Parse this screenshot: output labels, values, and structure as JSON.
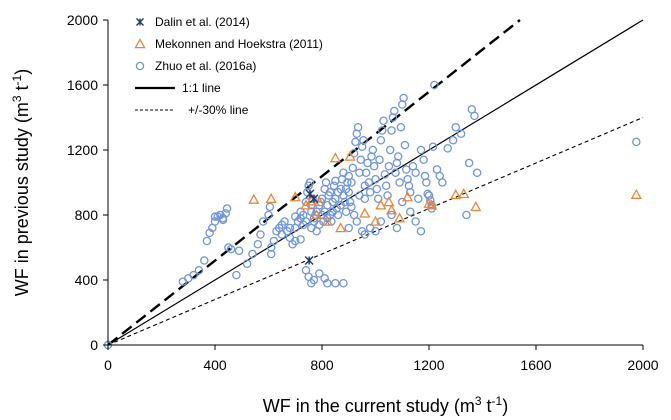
{
  "chart_data": {
    "type": "scatter",
    "xlabel_parts": [
      "WF in the current study (m",
      "3",
      " t",
      "-1",
      ")"
    ],
    "ylabel_parts": [
      "WF in previous study (m",
      "3",
      " t",
      "-1",
      ")"
    ],
    "xlim": [
      0,
      2000
    ],
    "ylim": [
      0,
      2000
    ],
    "x_ticks": [
      "0",
      "400",
      "800",
      "1200",
      "1600",
      "2000"
    ],
    "y_ticks": [
      "0",
      "400",
      "800",
      "1200",
      "1600",
      "2000"
    ],
    "grid": false,
    "legend_position": "top-left",
    "series": [
      {
        "name": "Dalin et al. (2014)",
        "marker": "asterisk",
        "color": "#1f3a6e",
        "points": [
          [
            752,
            520
          ],
          [
            755,
            930
          ],
          [
            770,
            900
          ]
        ]
      },
      {
        "name": "Mekonnen and Hoekstra (2011)",
        "marker": "triangle",
        "color": "#e8873a",
        "points": [
          [
            545,
            895
          ],
          [
            610,
            900
          ],
          [
            700,
            910
          ],
          [
            760,
            885
          ],
          [
            790,
            880
          ],
          [
            850,
            1150
          ],
          [
            905,
            1160
          ],
          [
            960,
            810
          ],
          [
            1020,
            860
          ],
          [
            1060,
            830
          ],
          [
            1050,
            880
          ],
          [
            1120,
            910
          ],
          [
            1200,
            870
          ],
          [
            1210,
            860
          ],
          [
            1300,
            925
          ],
          [
            1330,
            930
          ],
          [
            1375,
            850
          ],
          [
            1975,
            925
          ],
          [
            780,
            800
          ],
          [
            820,
            760
          ],
          [
            870,
            720
          ],
          [
            740,
            860
          ],
          [
            1000,
            760
          ],
          [
            1090,
            780
          ]
        ]
      },
      {
        "name": "Zhuo et al. (2016a)",
        "marker": "circle",
        "color": "#6f94d8",
        "points": [
          [
            0,
            0
          ],
          [
            280,
            390
          ],
          [
            300,
            410
          ],
          [
            320,
            430
          ],
          [
            340,
            460
          ],
          [
            360,
            520
          ],
          [
            370,
            640
          ],
          [
            380,
            690
          ],
          [
            390,
            720
          ],
          [
            400,
            760
          ],
          [
            410,
            790
          ],
          [
            420,
            800
          ],
          [
            430,
            780
          ],
          [
            440,
            810
          ],
          [
            445,
            840
          ],
          [
            450,
            600
          ],
          [
            460,
            590
          ],
          [
            480,
            430
          ],
          [
            490,
            580
          ],
          [
            520,
            500
          ],
          [
            540,
            560
          ],
          [
            560,
            620
          ],
          [
            570,
            680
          ],
          [
            580,
            760
          ],
          [
            600,
            800
          ],
          [
            605,
            850
          ],
          [
            610,
            560
          ],
          [
            620,
            640
          ],
          [
            630,
            700
          ],
          [
            640,
            720
          ],
          [
            650,
            740
          ],
          [
            660,
            760
          ],
          [
            670,
            700
          ],
          [
            680,
            660
          ],
          [
            690,
            620
          ],
          [
            700,
            640
          ],
          [
            700,
            720
          ],
          [
            710,
            760
          ],
          [
            720,
            780
          ],
          [
            720,
            820
          ],
          [
            730,
            800
          ],
          [
            730,
            740
          ],
          [
            740,
            760
          ],
          [
            740,
            880
          ],
          [
            745,
            940
          ],
          [
            750,
            980
          ],
          [
            755,
            1000
          ],
          [
            760,
            720
          ],
          [
            760,
            820
          ],
          [
            760,
            860
          ],
          [
            765,
            900
          ],
          [
            770,
            760
          ],
          [
            770,
            780
          ],
          [
            775,
            800
          ],
          [
            780,
            820
          ],
          [
            780,
            700
          ],
          [
            790,
            740
          ],
          [
            790,
            860
          ],
          [
            795,
            880
          ],
          [
            800,
            900
          ],
          [
            800,
            800
          ],
          [
            805,
            760
          ],
          [
            810,
            820
          ],
          [
            810,
            960
          ],
          [
            815,
            1000
          ],
          [
            820,
            780
          ],
          [
            820,
            860
          ],
          [
            825,
            920
          ],
          [
            830,
            940
          ],
          [
            830,
            800
          ],
          [
            835,
            760
          ],
          [
            840,
            820
          ],
          [
            840,
            880
          ],
          [
            845,
            980
          ],
          [
            850,
            1010
          ],
          [
            850,
            900
          ],
          [
            855,
            840
          ],
          [
            860,
            800
          ],
          [
            860,
            940
          ],
          [
            870,
            960
          ],
          [
            870,
            860
          ],
          [
            875,
            1020
          ],
          [
            880,
            1060
          ],
          [
            880,
            920
          ],
          [
            885,
            880
          ],
          [
            890,
            820
          ],
          [
            890,
            960
          ],
          [
            895,
            1000
          ],
          [
            900,
            1040
          ],
          [
            900,
            940
          ],
          [
            905,
            880
          ],
          [
            910,
            850
          ],
          [
            910,
            1000
          ],
          [
            915,
            1090
          ],
          [
            920,
            1180
          ],
          [
            925,
            1250
          ],
          [
            930,
            1300
          ],
          [
            935,
            1340
          ],
          [
            940,
            920
          ],
          [
            940,
            1060
          ],
          [
            945,
            1140
          ],
          [
            950,
            1220
          ],
          [
            955,
            1260
          ],
          [
            960,
            980
          ],
          [
            960,
            900
          ],
          [
            965,
            1060
          ],
          [
            970,
            1120
          ],
          [
            975,
            1000
          ],
          [
            980,
            940
          ],
          [
            985,
            1160
          ],
          [
            990,
            1200
          ],
          [
            995,
            1100
          ],
          [
            1000,
            1020
          ],
          [
            1005,
            960
          ],
          [
            1010,
            900
          ],
          [
            1015,
            1140
          ],
          [
            1020,
            1260
          ],
          [
            1025,
            1320
          ],
          [
            1030,
            1380
          ],
          [
            1035,
            1050
          ],
          [
            1040,
            980
          ],
          [
            1045,
            920
          ],
          [
            1050,
            1100
          ],
          [
            1055,
            1200
          ],
          [
            1060,
            1320
          ],
          [
            1065,
            1400
          ],
          [
            1070,
            1440
          ],
          [
            1075,
            1060
          ],
          [
            1080,
            1120
          ],
          [
            1085,
            1160
          ],
          [
            1090,
            1000
          ],
          [
            1095,
            1340
          ],
          [
            1100,
            1480
          ],
          [
            1105,
            1520
          ],
          [
            1110,
            1230
          ],
          [
            1115,
            1080
          ],
          [
            1120,
            1020
          ],
          [
            1125,
            980
          ],
          [
            1130,
            940
          ],
          [
            1140,
            1100
          ],
          [
            1150,
            1060
          ],
          [
            1160,
            900
          ],
          [
            1170,
            1200
          ],
          [
            1180,
            1140
          ],
          [
            1185,
            1040
          ],
          [
            1190,
            1000
          ],
          [
            1195,
            930
          ],
          [
            1200,
            920
          ],
          [
            1205,
            890
          ],
          [
            1210,
            860
          ],
          [
            1215,
            1220
          ],
          [
            1220,
            1600
          ],
          [
            1230,
            1080
          ],
          [
            1240,
            1040
          ],
          [
            1250,
            1000
          ],
          [
            1270,
            1210
          ],
          [
            1290,
            1260
          ],
          [
            1300,
            1340
          ],
          [
            1320,
            1300
          ],
          [
            1340,
            800
          ],
          [
            1350,
            1120
          ],
          [
            1360,
            1450
          ],
          [
            1370,
            1410
          ],
          [
            1380,
            1060
          ],
          [
            1975,
            1250
          ],
          [
            400,
            790
          ],
          [
            430,
            770
          ],
          [
            610,
            600
          ],
          [
            650,
            680
          ],
          [
            680,
            720
          ],
          [
            700,
            790
          ],
          [
            720,
            650
          ],
          [
            740,
            460
          ],
          [
            750,
            420
          ],
          [
            760,
            380
          ],
          [
            770,
            400
          ],
          [
            790,
            440
          ],
          [
            810,
            410
          ],
          [
            820,
            380
          ],
          [
            850,
            380
          ],
          [
            880,
            380
          ],
          [
            900,
            720
          ],
          [
            920,
            800
          ],
          [
            930,
            760
          ],
          [
            950,
            700
          ],
          [
            960,
            680
          ],
          [
            980,
            720
          ],
          [
            1000,
            700
          ],
          [
            1020,
            760
          ],
          [
            1060,
            800
          ],
          [
            1080,
            720
          ],
          [
            1100,
            880
          ],
          [
            1130,
            820
          ],
          [
            1150,
            760
          ],
          [
            1170,
            700
          ],
          [
            1210,
            840
          ]
        ]
      }
    ],
    "lines": [
      {
        "name": "1:1 line",
        "style": "solid",
        "x": [
          0,
          2000
        ],
        "y": [
          0,
          2000
        ]
      },
      {
        "name": "+/-30% line",
        "style": "dashed",
        "x": [
          0,
          2000
        ],
        "y": [
          0,
          1400
        ]
      },
      {
        "name": "",
        "style": "dashed-bold",
        "x": [
          0,
          1540
        ],
        "y": [
          0,
          2000
        ]
      }
    ]
  }
}
